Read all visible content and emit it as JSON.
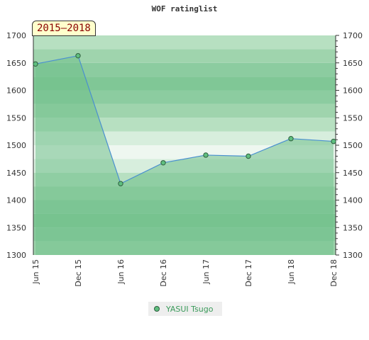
{
  "chart_data": {
    "type": "area",
    "title": "WOF ratinglist",
    "period_label": "2015–2018",
    "categories": [
      "Jun 15",
      "Dec 15",
      "Jun 16",
      "Dec 16",
      "Jun 17",
      "Dec 17",
      "Jun 18",
      "Dec 18"
    ],
    "series": [
      {
        "name": "YASUI Tsugo",
        "values": [
          1648,
          1663,
          1430,
          1468,
          1482,
          1480,
          1512,
          1507
        ]
      }
    ],
    "y_ticks": [
      1300,
      1350,
      1400,
      1450,
      1500,
      1550,
      1600,
      1650,
      1700
    ],
    "ylim": [
      1300,
      1700
    ],
    "axes": "left and right y-axis",
    "legend_position": "bottom-center",
    "colors": {
      "line": "#4a90d0",
      "fill": "#6fbf8a",
      "marker": "#5fbf7f",
      "marker_border": "#2e5e3e"
    }
  }
}
